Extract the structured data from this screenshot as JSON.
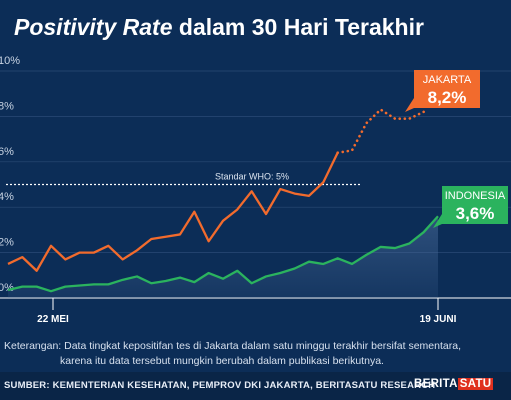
{
  "header": {
    "title_italic": "Positivity Rate",
    "title_rest": " dalam 30 Hari Terakhir"
  },
  "chart_data": {
    "type": "line",
    "y_tick_labels": [
      "0%",
      "2%",
      "4%",
      "6%",
      "8%",
      "10%"
    ],
    "ylim": [
      0,
      10
    ],
    "x_tick_labels": [
      "22 MEI",
      "19 JUNI"
    ],
    "grid": true,
    "reference_line": {
      "label": "Standar WHO: 5%",
      "value": 5
    },
    "series": [
      {
        "name": "JAKARTA",
        "value_label": "8,2%",
        "color": "#f26b2d",
        "values": [
          1.5,
          1.8,
          1.2,
          2.3,
          1.7,
          2.0,
          2.0,
          2.3,
          1.7,
          2.1,
          2.6,
          2.7,
          2.8,
          3.8,
          2.5,
          3.4,
          3.9,
          4.7,
          3.7,
          4.8,
          4.6,
          4.5,
          5.1,
          6.4
        ],
        "estimated_values": [
          6.4,
          6.5,
          7.7,
          8.3,
          7.9,
          7.9,
          8.2
        ]
      },
      {
        "name": "INDONESIA",
        "value_label": "3,6%",
        "color": "#2bb35e",
        "values": [
          0.35,
          0.5,
          0.5,
          0.3,
          0.5,
          0.55,
          0.6,
          0.6,
          0.8,
          0.95,
          0.65,
          0.75,
          0.9,
          0.7,
          1.1,
          0.85,
          1.2,
          0.65,
          0.95,
          1.1,
          1.3,
          1.6,
          1.5,
          1.75,
          1.5,
          1.9,
          2.25,
          2.2,
          2.4,
          2.9,
          3.6
        ]
      }
    ]
  },
  "note": {
    "line1": "Keterangan: Data tingkat kepositifan tes di Jakarta dalam satu minggu terakhir bersifat sementara,",
    "line2": "karena itu data tersebut mungkin berubah dalam publikasi berikutnya."
  },
  "footer": {
    "source": "SUMBER: KEMENTERIAN KESEHATAN, PEMPROV DKI JAKARTA, BERITASATU RESEARCH",
    "brand_a": "BERITA",
    "brand_b": "SATU"
  },
  "colors": {
    "background": "#0c2d57",
    "jakarta": "#f26b2d",
    "indonesia": "#2bb35e",
    "grid": "#2a4a76"
  }
}
